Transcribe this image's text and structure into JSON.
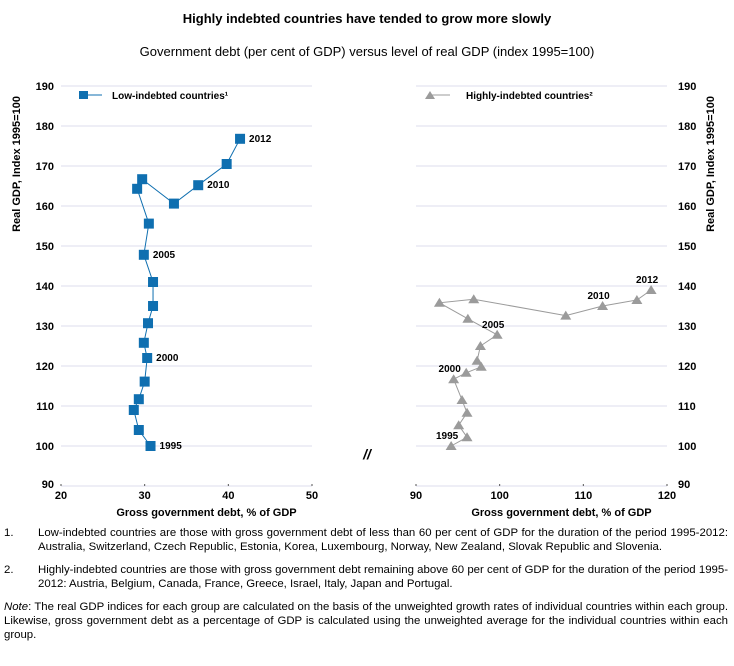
{
  "header": {
    "title": "Highly indebted countries have tended to grow more slowly",
    "subtitle": "Government debt (per cent of GDP) versus level of real GDP (index 1995=100)"
  },
  "chart_data": [
    {
      "type": "line",
      "name": "left-panel",
      "title": "",
      "xlabel": "Gross government debt, % of GDP",
      "ylabel": "Real GDP, Index 1995=100",
      "xlim": [
        20,
        50
      ],
      "ylim": [
        90,
        190
      ],
      "x_ticks": [
        "20",
        "30",
        "40",
        "50"
      ],
      "y_ticks": [
        "90",
        "100",
        "110",
        "120",
        "130",
        "140",
        "150",
        "160",
        "170",
        "180",
        "190"
      ],
      "grid": "horizontal",
      "legend": {
        "label": "Low-indebted countries¹",
        "placement": "top-left"
      },
      "marker": "square",
      "color": "#0f6fb0",
      "series": [
        {
          "name": "Low-indebted countries",
          "years": [
            1995,
            1996,
            1997,
            1998,
            1999,
            2000,
            2001,
            2002,
            2003,
            2004,
            2005,
            2006,
            2007,
            2008,
            2009,
            2010,
            2011,
            2012
          ],
          "x": [
            30.7,
            29.3,
            28.7,
            29.3,
            30.0,
            30.3,
            29.9,
            30.4,
            31.0,
            31.0,
            29.9,
            30.5,
            29.1,
            29.7,
            33.5,
            36.4,
            39.8,
            41.4
          ],
          "y": [
            100,
            104,
            109,
            111.7,
            116.1,
            122,
            125.8,
            130.7,
            135,
            141,
            147.8,
            155.6,
            164.3,
            166.7,
            160.6,
            165.2,
            170.5,
            176.8
          ]
        }
      ],
      "annotations": [
        {
          "label": "1995",
          "year": 1995,
          "position": "right"
        },
        {
          "label": "2000",
          "year": 2000,
          "position": "right"
        },
        {
          "label": "2005",
          "year": 2005,
          "position": "right"
        },
        {
          "label": "2010",
          "year": 2010,
          "position": "right"
        },
        {
          "label": "2012",
          "year": 2012,
          "position": "right"
        }
      ]
    },
    {
      "type": "line",
      "name": "right-panel",
      "title": "",
      "xlabel": "Gross government debt, % of GDP",
      "ylabel": "Real GDP, Index 1995=100",
      "xlim": [
        90,
        120
      ],
      "ylim": [
        90,
        190
      ],
      "x_ticks": [
        "90",
        "100",
        "110",
        "120"
      ],
      "y_ticks": [
        "90",
        "100",
        "110",
        "120",
        "130",
        "140",
        "150",
        "160",
        "170",
        "180",
        "190"
      ],
      "grid": "horizontal",
      "legend": {
        "label": "Highly-indebted countries²",
        "placement": "top-left"
      },
      "marker": "triangle",
      "color": "#9b9b9b",
      "series": [
        {
          "name": "Highly-indebted countries",
          "years": [
            1995,
            1996,
            1997,
            1998,
            1999,
            2000,
            2001,
            2002,
            2003,
            2004,
            2005,
            2006,
            2007,
            2008,
            2009,
            2010,
            2011,
            2012
          ],
          "x": [
            94.2,
            96.1,
            95.1,
            96.1,
            95.5,
            94.5,
            96.0,
            97.8,
            97.3,
            97.7,
            99.7,
            96.2,
            92.8,
            96.9,
            107.9,
            112.3,
            116.4,
            118.1
          ],
          "y": [
            100,
            102.2,
            105.2,
            108.3,
            111.5,
            116.7,
            118.3,
            119.8,
            121.3,
            125.0,
            127.8,
            131.8,
            135.8,
            136.7,
            132.6,
            135.0,
            136.5,
            139.0
          ]
        }
      ],
      "annotations": [
        {
          "label": "1995",
          "year": 1995,
          "position": "above-left"
        },
        {
          "label": "2000",
          "year": 2000,
          "position": "above-left"
        },
        {
          "label": "2005",
          "year": 2005,
          "position": "above-left"
        },
        {
          "label": "2010",
          "year": 2010,
          "position": "above-left"
        },
        {
          "label": "2012",
          "year": 2012,
          "position": "above-left"
        }
      ]
    }
  ],
  "break_mark": "//",
  "footnotes": [
    {
      "num": "1.",
      "text": "Low-indebted countries are those with gross government debt of less than 60 per cent of GDP for the duration of the period 1995-2012: Australia, Switzerland, Czech Republic, Estonia, Korea, Luxembourg, Norway, New Zealand, Slovak Republic and Slovenia."
    },
    {
      "num": "2.",
      "text": "Highly-indebted countries are those with gross government debt remaining above 60 per cent of GDP for the duration of the period 1995-2012: Austria, Belgium, Canada, France, Greece, Israel, Italy, Japan and Portugal."
    }
  ],
  "note": {
    "label": "Note",
    "text": ": The real GDP indices for each group are calculated on the basis of the unweighted growth rates of individual countries within each group. Likewise, gross government debt as a percentage of GDP is calculated using the unweighted average for the individual countries within each group."
  }
}
